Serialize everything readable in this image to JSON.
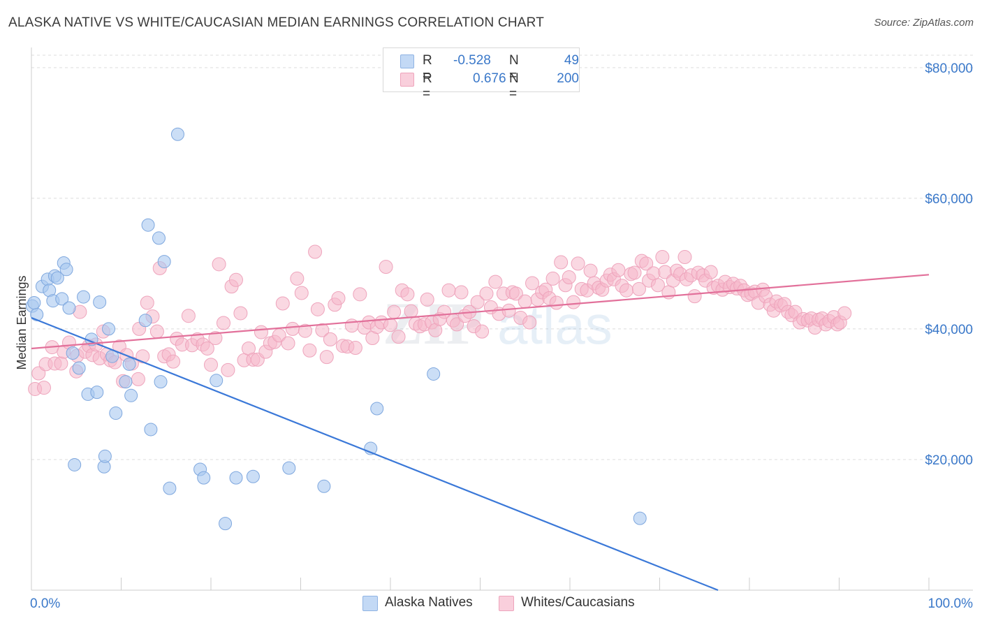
{
  "header": {
    "title": "ALASKA NATIVE VS WHITE/CAUCASIAN MEDIAN EARNINGS CORRELATION CHART",
    "source": "Source: ZipAtlas.com"
  },
  "watermark": {
    "zip": "ZIP",
    "atlas": "atlas"
  },
  "legend": {
    "r_label": "R =",
    "n_label": "N =",
    "rows": [
      {
        "r": "-0.528",
        "n": "49",
        "color": "#a9c8f0"
      },
      {
        "r": "0.676",
        "n": "200",
        "color": "#f5b8cb"
      }
    ]
  },
  "bottom_legend": {
    "series1": "Alaska Natives",
    "series2": "Whites/Caucasians"
  },
  "chart_data": {
    "type": "scatter",
    "title": "ALASKA NATIVE VS WHITE/CAUCASIAN MEDIAN EARNINGS CORRELATION CHART",
    "xlabel": "",
    "ylabel": "Median Earnings",
    "x_tick_labels": [
      "0.0%",
      "100.0%"
    ],
    "y_tick_labels": [
      "$20,000",
      "$40,000",
      "$60,000",
      "$80,000"
    ],
    "y_ticks": [
      20000,
      40000,
      60000,
      80000
    ],
    "xlim": [
      0,
      100
    ],
    "ylim": [
      0,
      82000
    ],
    "grid": true,
    "legend_position": "top-center",
    "colors": {
      "alaska": "#3a78d8",
      "alaska_fill": "#a9c8f0",
      "white": "#e2709a",
      "white_fill": "#f5b8cb",
      "axis_text": "#3a78c9"
    },
    "series": [
      {
        "name": "Alaska Natives",
        "r": -0.528,
        "n": 49,
        "trend": [
          [
            0,
            41700
          ],
          [
            76.5,
            0
          ]
        ],
        "points": [
          [
            0.1,
            43500
          ],
          [
            0.6,
            42200
          ],
          [
            1.2,
            46500
          ],
          [
            1.8,
            47600
          ],
          [
            2.0,
            45900
          ],
          [
            2.4,
            44300
          ],
          [
            2.6,
            48100
          ],
          [
            2.9,
            47800
          ],
          [
            3.4,
            44600
          ],
          [
            3.6,
            50100
          ],
          [
            3.9,
            49100
          ],
          [
            4.2,
            43200
          ],
          [
            4.6,
            36300
          ],
          [
            4.8,
            19200
          ],
          [
            5.3,
            34000
          ],
          [
            5.8,
            44900
          ],
          [
            6.3,
            30000
          ],
          [
            6.7,
            38400
          ],
          [
            7.3,
            30300
          ],
          [
            7.6,
            44100
          ],
          [
            8.1,
            18900
          ],
          [
            8.2,
            20500
          ],
          [
            8.6,
            40000
          ],
          [
            9.0,
            35800
          ],
          [
            9.4,
            27100
          ],
          [
            10.5,
            31900
          ],
          [
            10.9,
            34600
          ],
          [
            11.1,
            29800
          ],
          [
            12.7,
            41300
          ],
          [
            13.0,
            55900
          ],
          [
            13.3,
            24600
          ],
          [
            14.2,
            53900
          ],
          [
            14.4,
            31900
          ],
          [
            14.8,
            50300
          ],
          [
            15.4,
            15600
          ],
          [
            16.3,
            69800
          ],
          [
            18.8,
            18500
          ],
          [
            19.2,
            17200
          ],
          [
            20.6,
            32100
          ],
          [
            21.6,
            10200
          ],
          [
            22.8,
            17200
          ],
          [
            24.7,
            17400
          ],
          [
            28.7,
            18700
          ],
          [
            32.6,
            15900
          ],
          [
            37.8,
            21700
          ],
          [
            38.5,
            27800
          ],
          [
            44.8,
            33100
          ],
          [
            67.8,
            11000
          ],
          [
            0.3,
            44000
          ]
        ]
      },
      {
        "name": "Whites/Caucasians",
        "r": 0.676,
        "n": 200,
        "trend": [
          [
            0,
            37000
          ],
          [
            100,
            48300
          ]
        ],
        "points": [
          [
            0.4,
            30800
          ],
          [
            0.8,
            33200
          ],
          [
            1.4,
            31000
          ],
          [
            1.6,
            34600
          ],
          [
            2.3,
            37200
          ],
          [
            2.6,
            34700
          ],
          [
            3.3,
            34700
          ],
          [
            3.6,
            36500
          ],
          [
            4.2,
            37900
          ],
          [
            5.1,
            35900
          ],
          [
            5.4,
            42600
          ],
          [
            6.0,
            36500
          ],
          [
            6.4,
            37400
          ],
          [
            6.8,
            36000
          ],
          [
            7.2,
            37600
          ],
          [
            7.6,
            35500
          ],
          [
            8.0,
            39600
          ],
          [
            8.4,
            36100
          ],
          [
            8.8,
            35200
          ],
          [
            9.3,
            34900
          ],
          [
            9.8,
            37300
          ],
          [
            10.2,
            32000
          ],
          [
            10.6,
            36000
          ],
          [
            11.2,
            34700
          ],
          [
            11.9,
            32300
          ],
          [
            12.4,
            35800
          ],
          [
            12.9,
            44000
          ],
          [
            13.5,
            41900
          ],
          [
            14.0,
            39600
          ],
          [
            14.3,
            49300
          ],
          [
            14.8,
            35800
          ],
          [
            15.3,
            36100
          ],
          [
            15.8,
            35000
          ],
          [
            16.2,
            38500
          ],
          [
            16.8,
            37600
          ],
          [
            17.5,
            42000
          ],
          [
            17.9,
            37500
          ],
          [
            18.5,
            38400
          ],
          [
            19.1,
            37600
          ],
          [
            19.6,
            37000
          ],
          [
            20.0,
            34500
          ],
          [
            20.5,
            38600
          ],
          [
            20.9,
            49900
          ],
          [
            21.4,
            40900
          ],
          [
            21.9,
            33700
          ],
          [
            22.3,
            46500
          ],
          [
            22.8,
            47500
          ],
          [
            23.3,
            42400
          ],
          [
            23.7,
            35200
          ],
          [
            24.2,
            37000
          ],
          [
            24.7,
            35300
          ],
          [
            25.2,
            35300
          ],
          [
            25.6,
            39500
          ],
          [
            26.1,
            36500
          ],
          [
            26.6,
            37800
          ],
          [
            27.1,
            38000
          ],
          [
            27.6,
            39000
          ],
          [
            28.0,
            43900
          ],
          [
            28.6,
            37800
          ],
          [
            29.1,
            40000
          ],
          [
            29.6,
            47700
          ],
          [
            30.1,
            45500
          ],
          [
            30.5,
            39700
          ],
          [
            31.0,
            36700
          ],
          [
            31.6,
            51800
          ],
          [
            31.9,
            43000
          ],
          [
            32.4,
            39800
          ],
          [
            32.9,
            35700
          ],
          [
            33.3,
            38400
          ],
          [
            33.8,
            43700
          ],
          [
            34.2,
            44700
          ],
          [
            34.7,
            37400
          ],
          [
            35.2,
            37300
          ],
          [
            35.7,
            40500
          ],
          [
            36.1,
            37100
          ],
          [
            36.6,
            45300
          ],
          [
            37.1,
            40200
          ],
          [
            37.6,
            41000
          ],
          [
            38.0,
            38600
          ],
          [
            38.5,
            40300
          ],
          [
            39.0,
            41000
          ],
          [
            39.5,
            49500
          ],
          [
            40.0,
            40600
          ],
          [
            40.4,
            42600
          ],
          [
            40.9,
            38800
          ],
          [
            41.3,
            45900
          ],
          [
            41.9,
            45300
          ],
          [
            42.3,
            42700
          ],
          [
            42.8,
            40800
          ],
          [
            43.3,
            40400
          ],
          [
            43.8,
            40700
          ],
          [
            44.1,
            44500
          ],
          [
            44.6,
            41000
          ],
          [
            45.0,
            39800
          ],
          [
            45.5,
            41500
          ],
          [
            46.0,
            42600
          ],
          [
            46.5,
            45900
          ],
          [
            47.0,
            41300
          ],
          [
            47.4,
            40700
          ],
          [
            47.9,
            45600
          ],
          [
            48.3,
            42000
          ],
          [
            48.8,
            42600
          ],
          [
            49.3,
            40400
          ],
          [
            49.7,
            44100
          ],
          [
            50.2,
            39600
          ],
          [
            50.7,
            45400
          ],
          [
            51.2,
            43300
          ],
          [
            51.7,
            47200
          ],
          [
            52.1,
            42300
          ],
          [
            52.6,
            45400
          ],
          [
            53.2,
            42800
          ],
          [
            53.6,
            45600
          ],
          [
            54.0,
            45400
          ],
          [
            54.5,
            41700
          ],
          [
            55.0,
            44200
          ],
          [
            55.5,
            41000
          ],
          [
            55.8,
            47000
          ],
          [
            56.4,
            44500
          ],
          [
            56.9,
            45600
          ],
          [
            57.3,
            46000
          ],
          [
            57.7,
            44700
          ],
          [
            58.1,
            47700
          ],
          [
            58.5,
            44000
          ],
          [
            59.0,
            50200
          ],
          [
            59.5,
            46700
          ],
          [
            59.9,
            47900
          ],
          [
            60.4,
            44100
          ],
          [
            60.9,
            50000
          ],
          [
            61.3,
            46100
          ],
          [
            61.9,
            45900
          ],
          [
            62.3,
            48900
          ],
          [
            62.7,
            47000
          ],
          [
            63.2,
            46300
          ],
          [
            63.6,
            46000
          ],
          [
            64.1,
            47400
          ],
          [
            64.5,
            48300
          ],
          [
            64.9,
            47600
          ],
          [
            65.4,
            49000
          ],
          [
            65.8,
            46600
          ],
          [
            66.3,
            45900
          ],
          [
            66.8,
            48400
          ],
          [
            67.2,
            48600
          ],
          [
            67.7,
            46100
          ],
          [
            68.0,
            50400
          ],
          [
            68.5,
            50000
          ],
          [
            68.8,
            47400
          ],
          [
            69.3,
            48500
          ],
          [
            69.8,
            46700
          ],
          [
            70.3,
            51000
          ],
          [
            70.6,
            48700
          ],
          [
            71.0,
            45600
          ],
          [
            71.5,
            47400
          ],
          [
            71.9,
            48900
          ],
          [
            72.3,
            48400
          ],
          [
            72.8,
            51000
          ],
          [
            73.0,
            47600
          ],
          [
            73.5,
            48200
          ],
          [
            73.9,
            45000
          ],
          [
            74.3,
            48600
          ],
          [
            74.8,
            48200
          ],
          [
            75.1,
            47400
          ],
          [
            75.7,
            48700
          ],
          [
            76.0,
            46300
          ],
          [
            76.5,
            46600
          ],
          [
            77.0,
            46000
          ],
          [
            77.3,
            47200
          ],
          [
            77.8,
            46400
          ],
          [
            78.2,
            46900
          ],
          [
            78.6,
            46200
          ],
          [
            79.0,
            46600
          ],
          [
            79.4,
            45900
          ],
          [
            79.8,
            45200
          ],
          [
            80.2,
            45400
          ],
          [
            80.6,
            45700
          ],
          [
            81.0,
            44000
          ],
          [
            81.5,
            46000
          ],
          [
            81.8,
            45000
          ],
          [
            82.3,
            43700
          ],
          [
            82.7,
            42800
          ],
          [
            83.0,
            44200
          ],
          [
            83.5,
            43600
          ],
          [
            83.9,
            43800
          ],
          [
            84.3,
            42600
          ],
          [
            84.7,
            42100
          ],
          [
            85.1,
            42600
          ],
          [
            85.6,
            41000
          ],
          [
            86.0,
            41500
          ],
          [
            86.5,
            41300
          ],
          [
            86.9,
            41600
          ],
          [
            87.3,
            40200
          ],
          [
            87.7,
            41400
          ],
          [
            88.1,
            41600
          ],
          [
            88.5,
            40700
          ],
          [
            88.9,
            41200
          ],
          [
            89.4,
            41800
          ],
          [
            89.8,
            40700
          ],
          [
            90.1,
            41000
          ],
          [
            90.6,
            42400
          ],
          [
            5.0,
            33500
          ],
          [
            12.0,
            40000
          ]
        ]
      }
    ]
  }
}
